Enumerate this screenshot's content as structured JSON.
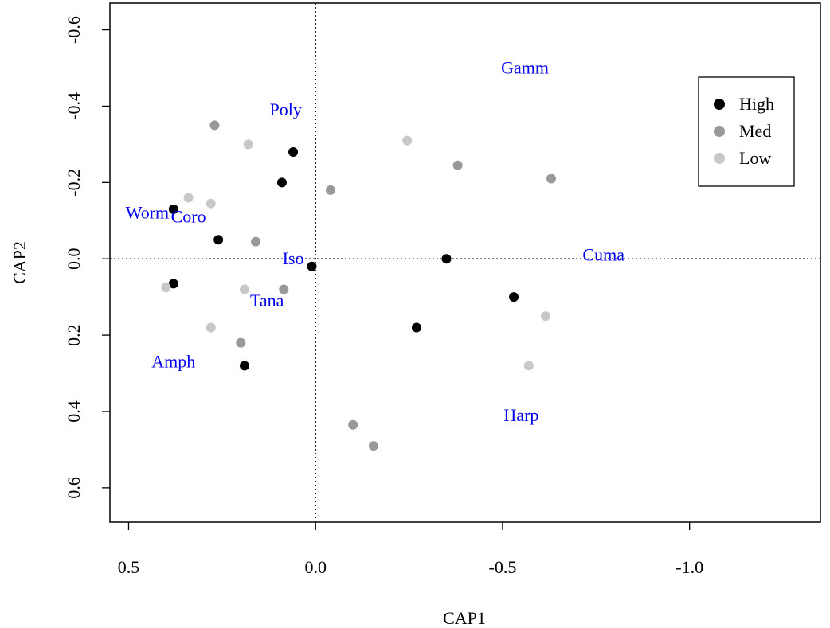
{
  "chart_data": {
    "type": "scatter",
    "title": "",
    "xlabel": "CAP1",
    "ylabel": "CAP2",
    "x_reversed": true,
    "y_reversed": true,
    "xlim": [
      0.55,
      -1.35
    ],
    "ylim": [
      0.69,
      -0.67
    ],
    "x_ticks": [
      0.5,
      0.0,
      -0.5,
      -1.0
    ],
    "x_tick_labels": [
      "0.5",
      "0.0",
      "-0.5",
      "-1.0"
    ],
    "y_ticks": [
      0.6,
      0.4,
      0.2,
      0.0,
      -0.2,
      -0.4,
      -0.6
    ],
    "y_tick_labels": [
      "0.6",
      "0.4",
      "0.2",
      "0.0",
      "-0.2",
      "-0.4",
      "-0.6"
    ],
    "reference_lines": {
      "x": 0,
      "y": 0
    },
    "legend_position": "top-right",
    "series": [
      {
        "name": "High",
        "color": "#000000",
        "points": [
          [
            0.38,
            -0.13
          ],
          [
            0.26,
            -0.05
          ],
          [
            0.09,
            -0.2
          ],
          [
            0.06,
            -0.28
          ],
          [
            0.01,
            0.02
          ],
          [
            0.38,
            0.065
          ],
          [
            0.19,
            0.28
          ],
          [
            -0.35,
            0.0
          ],
          [
            -0.53,
            0.1
          ],
          [
            -0.27,
            0.18
          ]
        ]
      },
      {
        "name": "Med",
        "color": "#999999",
        "points": [
          [
            0.27,
            -0.35
          ],
          [
            0.16,
            -0.045
          ],
          [
            0.085,
            0.08
          ],
          [
            0.2,
            0.22
          ],
          [
            -0.04,
            -0.18
          ],
          [
            -0.38,
            -0.245
          ],
          [
            -0.63,
            -0.21
          ],
          [
            -0.1,
            0.435
          ],
          [
            -0.155,
            0.49
          ]
        ]
      },
      {
        "name": "Low",
        "color": "#c8c8c8",
        "points": [
          [
            0.34,
            -0.16
          ],
          [
            0.28,
            -0.145
          ],
          [
            0.18,
            -0.3
          ],
          [
            0.19,
            0.08
          ],
          [
            0.28,
            0.18
          ],
          [
            0.4,
            0.075
          ],
          [
            -0.245,
            -0.31
          ],
          [
            -0.615,
            0.15
          ],
          [
            -0.57,
            0.28
          ]
        ]
      }
    ],
    "species": [
      {
        "label": "Gamm",
        "x": -0.56,
        "y": -0.5
      },
      {
        "label": "Poly",
        "x": 0.08,
        "y": -0.39
      },
      {
        "label": "Worm",
        "x": 0.45,
        "y": -0.12
      },
      {
        "label": "Coro",
        "x": 0.34,
        "y": -0.11
      },
      {
        "label": "Iso",
        "x": 0.06,
        "y": 0.0
      },
      {
        "label": "Cuma",
        "x": -0.77,
        "y": -0.01
      },
      {
        "label": "Tana",
        "x": 0.13,
        "y": 0.11
      },
      {
        "label": "Amph",
        "x": 0.38,
        "y": 0.27
      },
      {
        "label": "Harp",
        "x": -0.55,
        "y": 0.41
      }
    ],
    "species_color": "#0000ee"
  }
}
